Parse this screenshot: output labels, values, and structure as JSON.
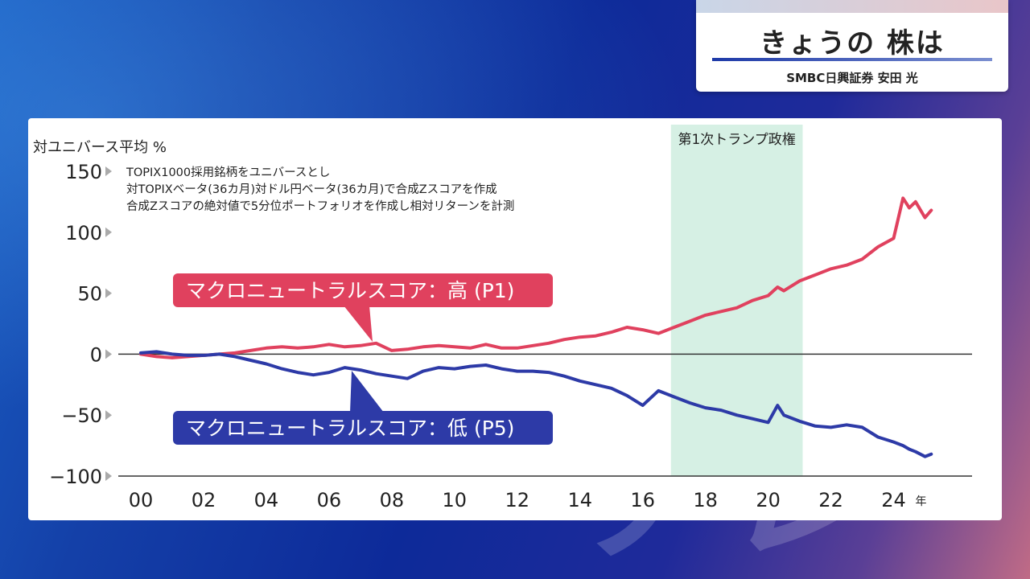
{
  "header": {
    "title": "きょうの 株は",
    "byline": "SMBC日興証券 安田 光"
  },
  "watermark": "テレ東",
  "chart_data": {
    "type": "line",
    "ylabel": "対ユニバース平均 %",
    "xunit": "年",
    "ylim": [
      -100,
      150
    ],
    "yticks": [
      "150",
      "100",
      "50",
      "0",
      "−50",
      "−100"
    ],
    "ytick_values": [
      150,
      100,
      50,
      0,
      -50,
      -100
    ],
    "xlim": [
      0,
      26.5
    ],
    "xticks": [
      "00",
      "02",
      "04",
      "06",
      "08",
      "10",
      "12",
      "14",
      "16",
      "18",
      "20",
      "22",
      "24"
    ],
    "xtick_values": [
      0,
      2,
      4,
      6,
      8,
      10,
      12,
      14,
      16,
      18,
      20,
      22,
      24
    ],
    "notes": [
      "TOPIX1000採用銘柄をユニバースとし",
      "対TOPIXベータ(36カ月)対ドル円ベータ(36カ月)で合成Zスコアを作成",
      "合成Zスコアの絶対値で5分位ポートフォリオを作成し相対リターンを計測"
    ],
    "shaded_region": {
      "label": "第1次トランプ政権",
      "x_start": 16.9,
      "x_end": 21.1,
      "color": "#d6f0e4"
    },
    "series": [
      {
        "name": "マクロニュートラルスコア：高 (P1)",
        "color": "#e0415e",
        "x": [
          0,
          0.5,
          1,
          1.5,
          2,
          2.5,
          3,
          3.5,
          4,
          4.5,
          5,
          5.5,
          6,
          6.5,
          7,
          7.5,
          8,
          8.5,
          9,
          9.5,
          10,
          10.5,
          11,
          11.5,
          12,
          12.5,
          13,
          13.5,
          14,
          14.5,
          15,
          15.5,
          16,
          16.5,
          17,
          17.5,
          18,
          18.5,
          19,
          19.5,
          20,
          20.3,
          20.5,
          21,
          21.5,
          22,
          22.5,
          23,
          23.5,
          24,
          24.3,
          24.5,
          24.7,
          25,
          25.2
        ],
        "y": [
          0,
          -2,
          -3,
          -2,
          -1,
          0,
          1,
          3,
          5,
          6,
          5,
          6,
          8,
          6,
          7,
          9,
          3,
          4,
          6,
          7,
          6,
          5,
          8,
          5,
          5,
          7,
          9,
          12,
          14,
          15,
          18,
          22,
          20,
          17,
          22,
          27,
          32,
          35,
          38,
          44,
          48,
          55,
          52,
          60,
          65,
          70,
          73,
          78,
          88,
          95,
          128,
          120,
          125,
          112,
          118
        ]
      },
      {
        "name": "マクロニュートラルスコア：低 (P5)",
        "color": "#2d3aa7",
        "x": [
          0,
          0.5,
          1,
          1.5,
          2,
          2.5,
          3,
          3.5,
          4,
          4.5,
          5,
          5.5,
          6,
          6.5,
          7,
          7.5,
          8,
          8.5,
          9,
          9.5,
          10,
          10.5,
          11,
          11.5,
          12,
          12.5,
          13,
          13.5,
          14,
          14.5,
          15,
          15.5,
          16,
          16.5,
          17,
          17.5,
          18,
          18.5,
          19,
          19.5,
          20,
          20.3,
          20.5,
          21,
          21.5,
          22,
          22.5,
          23,
          23.5,
          24,
          24.3,
          24.5,
          24.7,
          25,
          25.2
        ],
        "y": [
          1,
          2,
          0,
          -1,
          -1,
          0,
          -2,
          -5,
          -8,
          -12,
          -15,
          -17,
          -15,
          -11,
          -13,
          -16,
          -18,
          -20,
          -14,
          -11,
          -12,
          -10,
          -9,
          -12,
          -14,
          -14,
          -15,
          -18,
          -22,
          -25,
          -28,
          -34,
          -42,
          -30,
          -35,
          -40,
          -44,
          -46,
          -50,
          -53,
          -56,
          -42,
          -50,
          -55,
          -59,
          -60,
          -58,
          -60,
          -68,
          -72,
          -75,
          -78,
          -80,
          -84,
          -82
        ]
      }
    ]
  }
}
